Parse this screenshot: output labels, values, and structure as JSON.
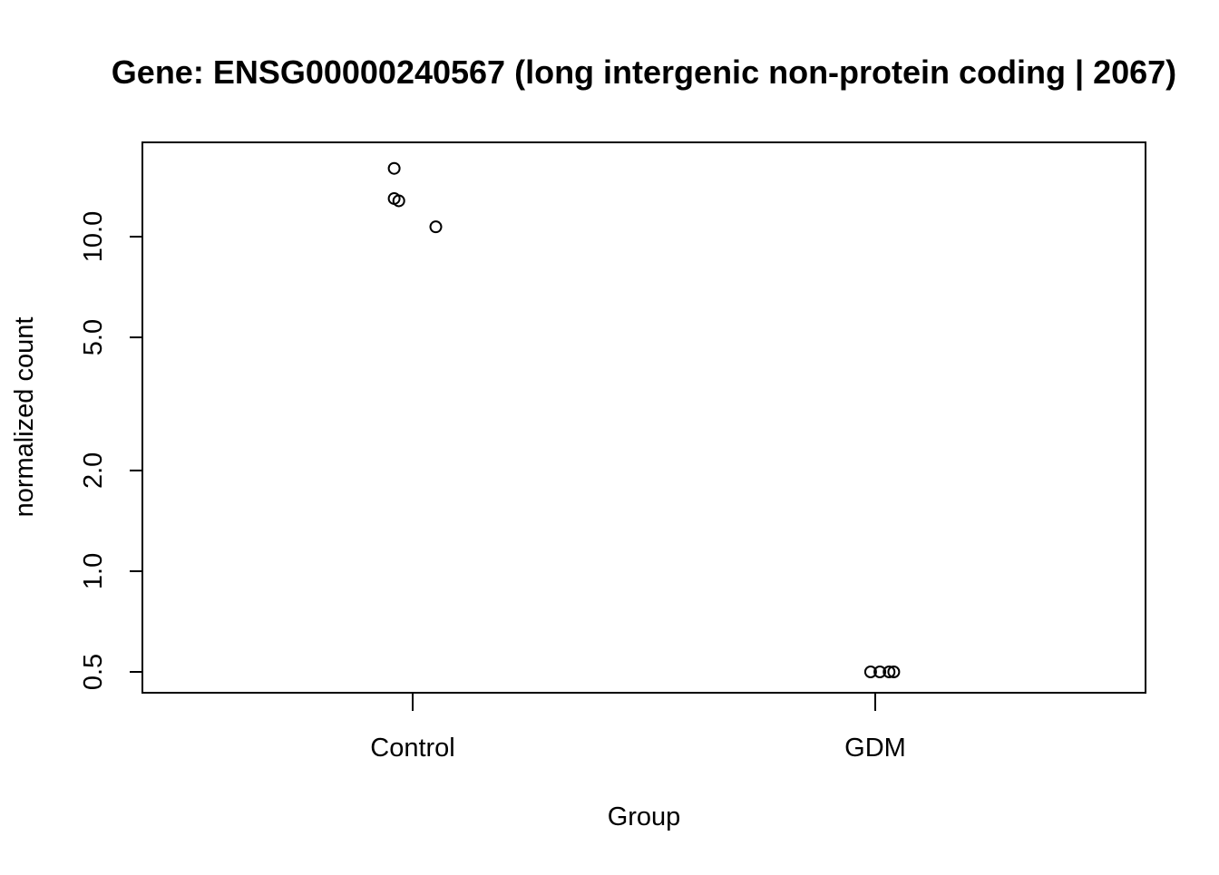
{
  "chart_data": {
    "type": "scatter",
    "title": "Gene: ENSG00000240567 (long intergenic non-protein coding | 2067)",
    "xlabel": "Group",
    "ylabel": "normalized count",
    "categories": [
      "Control",
      "GDM"
    ],
    "y_scale": "log",
    "ylim": [
      0.45,
      18.5
    ],
    "y_ticks": [
      0.5,
      1.0,
      2.0,
      5.0,
      10.0
    ],
    "y_tick_labels": [
      "0.5",
      "1.0",
      "2.0",
      "5.0",
      "10.0"
    ],
    "grid": false,
    "legend": "none",
    "marker": "open-circle",
    "colors": {
      "points": "#000000",
      "axes": "#000000",
      "background": "#ffffff"
    },
    "series": [
      {
        "category": "Control",
        "points": [
          {
            "jitter": -0.04,
            "y": 16.0
          },
          {
            "jitter": -0.04,
            "y": 13.0
          },
          {
            "jitter": -0.03,
            "y": 12.8
          },
          {
            "jitter": 0.05,
            "y": 10.7
          }
        ]
      },
      {
        "category": "GDM",
        "points": [
          {
            "jitter": -0.01,
            "y": 0.5
          },
          {
            "jitter": 0.01,
            "y": 0.5
          },
          {
            "jitter": 0.03,
            "y": 0.5
          },
          {
            "jitter": 0.04,
            "y": 0.5
          }
        ]
      }
    ]
  }
}
